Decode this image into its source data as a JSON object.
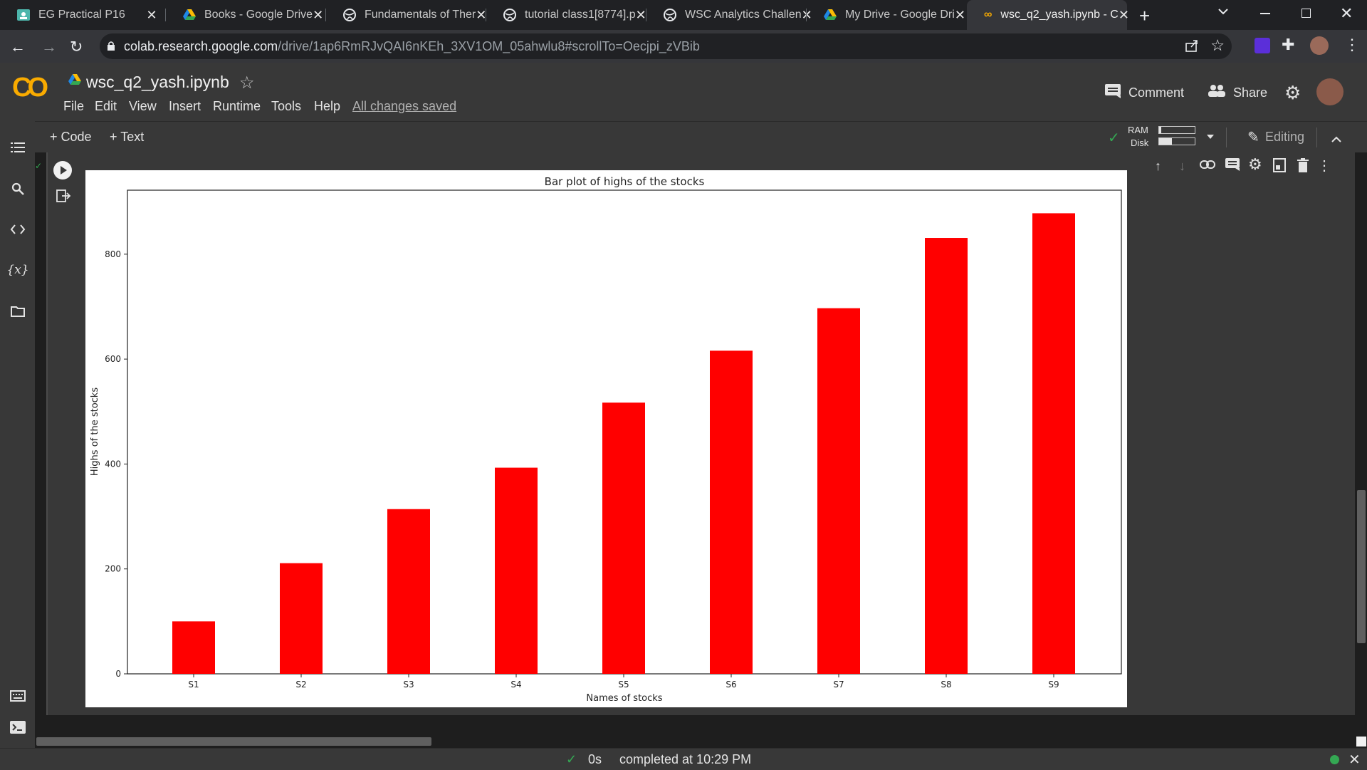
{
  "browser": {
    "tabs": [
      {
        "label": "EG Practical P16",
        "icon": "classroom-icon"
      },
      {
        "label": "Books - Google Drive",
        "icon": "drive-icon"
      },
      {
        "label": "Fundamentals of Ther",
        "icon": "globe-icon"
      },
      {
        "label": "tutorial class1[8774].p",
        "icon": "globe-icon"
      },
      {
        "label": "WSC Analytics Challen",
        "icon": "globe-icon"
      },
      {
        "label": "My Drive - Google Dri",
        "icon": "drive-icon"
      },
      {
        "label": "wsc_q2_yash.ipynb - C",
        "icon": "colab-icon",
        "active": true
      }
    ],
    "url_host": "colab.research.google.com",
    "url_path": "/drive/1ap6RmRJvQAI6nKEh_3XV1OM_05ahwlu8#scrollTo=Oecjpi_zVBib"
  },
  "colab": {
    "logo": "CO",
    "notebook_title": "wsc_q2_yash.ipynb",
    "menu": [
      "File",
      "Edit",
      "View",
      "Insert",
      "Runtime",
      "Tools",
      "Help"
    ],
    "save_status": "All changes saved",
    "comment_label": "Comment",
    "share_label": "Share",
    "add_code_label": "+ Code",
    "add_text_label": "+ Text",
    "ram_label": "RAM",
    "disk_label": "Disk",
    "ram_fraction": 0.05,
    "disk_fraction": 0.35,
    "editing_label": "Editing"
  },
  "status": {
    "duration": "0s",
    "completed_text": "completed at 10:29 PM"
  },
  "colors": {
    "bar": "#ff0000",
    "colab_orange": "#f9ab00",
    "status_ok": "#34a853"
  },
  "chart_data": {
    "type": "bar",
    "title": "Bar plot of highs of the stocks",
    "xlabel": "Names of stocks",
    "ylabel": "Highs of the stocks",
    "categories": [
      "S1",
      "S2",
      "S3",
      "S4",
      "S5",
      "S6",
      "S7",
      "S8",
      "S9"
    ],
    "values": [
      100,
      211,
      314,
      393,
      517,
      616,
      697,
      831,
      878
    ],
    "yticks": [
      0,
      200,
      400,
      600,
      800
    ],
    "ylim": [
      0,
      922
    ],
    "grid": false,
    "color": "#ff0000"
  }
}
